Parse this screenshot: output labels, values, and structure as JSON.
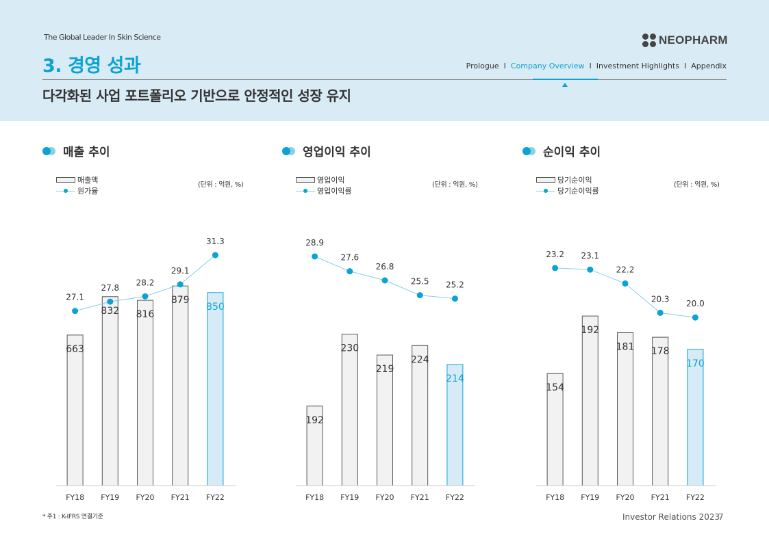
{
  "header": {
    "tagline": "The Global Leader In Skin Science",
    "logo_text": "NEOPHARM",
    "section_title": "3. 경영 성과",
    "subtitle": "다각화된 사업 포트폴리오 기반으로 안정적인 성장 유지",
    "nav": [
      {
        "label": "Prologue",
        "active": false
      },
      {
        "label": "Company Overview",
        "active": true
      },
      {
        "label": "Investment Highlights",
        "active": false
      },
      {
        "label": "Appendix",
        "active": false
      }
    ],
    "nav_separator": "I"
  },
  "colors": {
    "accent": "#0aa3d4",
    "header_bg": "#d9ebf5",
    "bar_fill": "#f2f2f2",
    "bar_stroke": "#555555",
    "highlight_fill": "#d6ebf6",
    "line": "#7fcfe8"
  },
  "panels": [
    {
      "title": "매출 추이",
      "legend_bar": "매출액",
      "legend_line": "원가율",
      "unit": "(단위 : 억원, %)"
    },
    {
      "title": "영업이익 추이",
      "legend_bar": "영업이익",
      "legend_line": "영업이익률",
      "unit": "(단위 : 억원, %)"
    },
    {
      "title": "순이익 추이",
      "legend_bar": "당기순이익",
      "legend_line": "당기순이익률",
      "unit": "(단위 : 억원, %)"
    }
  ],
  "chart_data": [
    {
      "type": "bar",
      "categories": [
        "FY18",
        "FY19",
        "FY20",
        "FY21",
        "FY22"
      ],
      "series": [
        {
          "name": "매출액",
          "type": "bar",
          "values": [
            663,
            832,
            816,
            879,
            850
          ]
        },
        {
          "name": "원가율",
          "type": "line",
          "values": [
            27.1,
            27.8,
            28.2,
            29.1,
            31.3
          ]
        }
      ],
      "highlight_index": 4,
      "bar_ylim": [
        0,
        1000
      ],
      "line_ylim": [
        15,
        33
      ]
    },
    {
      "type": "bar",
      "categories": [
        "FY18",
        "FY19",
        "FY20",
        "FY21",
        "FY22"
      ],
      "series": [
        {
          "name": "영업이익",
          "type": "bar",
          "values": [
            192,
            230,
            219,
            224,
            214
          ]
        },
        {
          "name": "영업이익률",
          "type": "line",
          "values": [
            28.9,
            27.6,
            26.8,
            25.5,
            25.2
          ]
        }
      ],
      "highlight_index": 4,
      "bar_ylim": [
        150,
        270
      ],
      "line_ylim": [
        10,
        31
      ]
    },
    {
      "type": "bar",
      "categories": [
        "FY18",
        "FY19",
        "FY20",
        "FY21",
        "FY22"
      ],
      "series": [
        {
          "name": "당기순이익",
          "type": "bar",
          "values": [
            154,
            192,
            181,
            178,
            170
          ]
        },
        {
          "name": "당기순이익률",
          "type": "line",
          "values": [
            23.2,
            23.1,
            22.2,
            20.3,
            20.0
          ]
        }
      ],
      "highlight_index": 4,
      "bar_ylim": [
        80,
        230
      ],
      "line_ylim": [
        10,
        25.5
      ]
    }
  ],
  "footnote": "* 주1 : K-IFRS  연결기준",
  "footer": {
    "text": "Investor Relations  2023",
    "page": "7"
  }
}
